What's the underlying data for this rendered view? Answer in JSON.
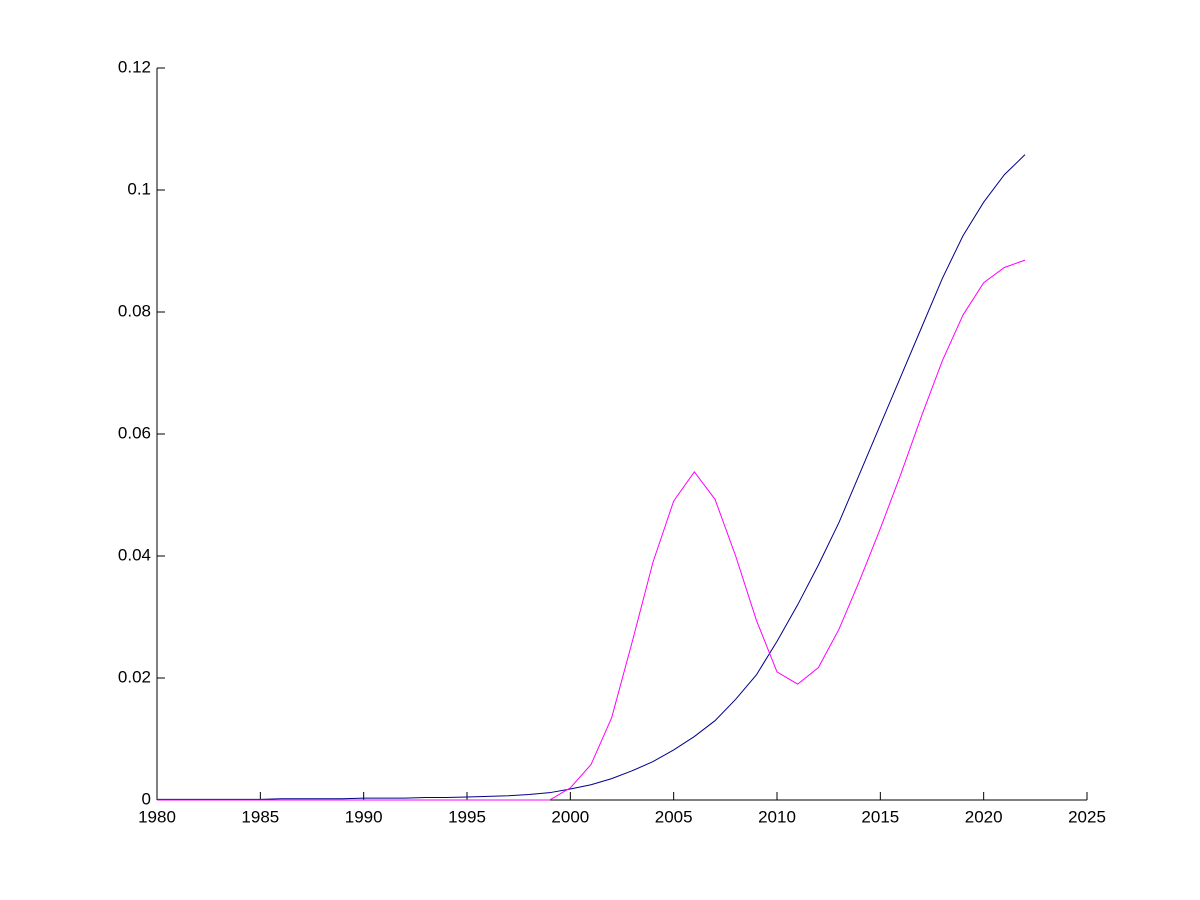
{
  "chart_data": {
    "type": "line",
    "x": [
      1980,
      1981,
      1982,
      1983,
      1984,
      1985,
      1986,
      1987,
      1988,
      1989,
      1990,
      1991,
      1992,
      1993,
      1994,
      1995,
      1996,
      1997,
      1998,
      1999,
      2000,
      2001,
      2002,
      2003,
      2004,
      2005,
      2006,
      2007,
      2008,
      2009,
      2010,
      2011,
      2012,
      2013,
      2014,
      2015,
      2016,
      2017,
      2018,
      2019,
      2020,
      2021,
      2022
    ],
    "series": [
      {
        "color": "#00008b",
        "values": [
          0.0001,
          0.0001,
          0.0001,
          0.0001,
          0.0001,
          0.0001,
          0.0002,
          0.0002,
          0.0002,
          0.0002,
          0.0003,
          0.0003,
          0.0003,
          0.0004,
          0.0004,
          0.0005,
          0.0006,
          0.0007,
          0.0009,
          0.0012,
          0.0018,
          0.0025,
          0.0035,
          0.0048,
          0.0063,
          0.0082,
          0.0104,
          0.013,
          0.0165,
          0.0205,
          0.026,
          0.032,
          0.0385,
          0.0455,
          0.0535,
          0.0615,
          0.0695,
          0.0775,
          0.0855,
          0.0925,
          0.098,
          0.1025,
          0.1058
        ]
      },
      {
        "color": "#ff00ff",
        "values": [
          0,
          0,
          0,
          0,
          0,
          0,
          0,
          0,
          0,
          0,
          0,
          0,
          0,
          0,
          0,
          0,
          0,
          0,
          0,
          0,
          0.002,
          0.0058,
          0.0135,
          0.026,
          0.039,
          0.049,
          0.0538,
          0.0493,
          0.04,
          0.0295,
          0.021,
          0.019,
          0.0217,
          0.028,
          0.036,
          0.0445,
          0.0535,
          0.063,
          0.072,
          0.0795,
          0.0848,
          0.0873,
          0.0885
        ]
      }
    ],
    "xlim": [
      1980,
      2025
    ],
    "xticks": [
      1980,
      1985,
      1990,
      1995,
      2000,
      2005,
      2010,
      2015,
      2020,
      2025
    ],
    "ylim": [
      0,
      0.12
    ],
    "yticks": [
      0,
      0.02,
      0.04,
      0.06,
      0.08,
      0.1,
      0.12
    ]
  }
}
